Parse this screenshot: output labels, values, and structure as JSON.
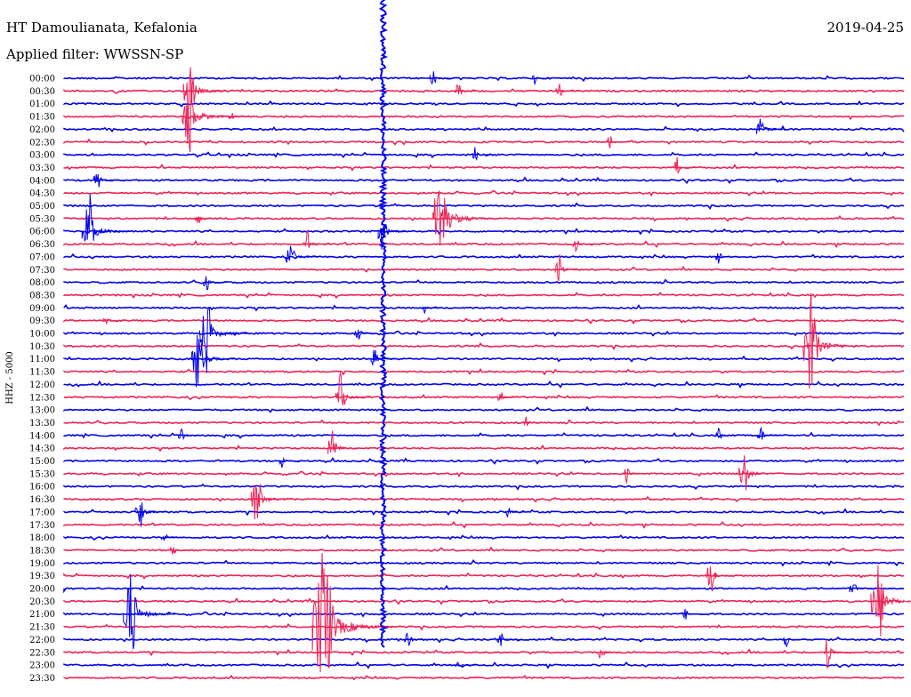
{
  "header": {
    "station": "HT Damoulianata, Kefalonia",
    "date": "2019-04-25",
    "filter_text": "Applied filter: WWSSN-SP"
  },
  "chart_data": {
    "type": "line",
    "title": "HT Damoulianata, Kefalonia",
    "subtitle": "Applied filter: WWSSN-SP",
    "date": "2019-04-25",
    "ylabel": "HHZ - 5000",
    "xlabel": "",
    "grid": false,
    "legend": "none",
    "colors": [
      "#0000ee",
      "#ee2255"
    ],
    "row_interval_minutes": 30,
    "rows": [
      "00:00",
      "00:30",
      "01:00",
      "01:30",
      "02:00",
      "02:30",
      "03:00",
      "03:30",
      "04:00",
      "04:30",
      "05:00",
      "05:30",
      "06:00",
      "06:30",
      "07:00",
      "07:30",
      "08:00",
      "08:30",
      "09:00",
      "09:30",
      "10:00",
      "10:30",
      "11:00",
      "11:30",
      "12:00",
      "12:30",
      "13:00",
      "13:30",
      "14:00",
      "14:30",
      "15:00",
      "15:30",
      "16:00",
      "16:30",
      "17:00",
      "17:30",
      "18:00",
      "18:30",
      "19:00",
      "19:30",
      "20:00",
      "20:30",
      "21:00",
      "21:30",
      "22:00",
      "22:30",
      "23:00",
      "23:30"
    ],
    "events": [
      {
        "row": 0,
        "pos": 0.44,
        "amp": 10
      },
      {
        "row": 0,
        "pos": 0.56,
        "amp": 7
      },
      {
        "row": 1,
        "pos": 0.15,
        "amp": 35
      },
      {
        "row": 1,
        "pos": 0.47,
        "amp": 10
      },
      {
        "row": 1,
        "pos": 0.59,
        "amp": 9
      },
      {
        "row": 3,
        "pos": 0.15,
        "amp": 45
      },
      {
        "row": 3,
        "pos": 0.2,
        "amp": 6
      },
      {
        "row": 4,
        "pos": 0.83,
        "amp": 18
      },
      {
        "row": 5,
        "pos": 0.65,
        "amp": 9
      },
      {
        "row": 6,
        "pos": 0.49,
        "amp": 8
      },
      {
        "row": 7,
        "pos": 0.73,
        "amp": 10
      },
      {
        "row": 8,
        "pos": 0.04,
        "amp": 14
      },
      {
        "row": 11,
        "pos": 0.45,
        "amp": 55
      },
      {
        "row": 11,
        "pos": 0.16,
        "amp": 8
      },
      {
        "row": 12,
        "pos": 0.03,
        "amp": 40
      },
      {
        "row": 12,
        "pos": 0.38,
        "amp": 22
      },
      {
        "row": 13,
        "pos": 0.29,
        "amp": 14
      },
      {
        "row": 13,
        "pos": 0.61,
        "amp": 8
      },
      {
        "row": 14,
        "pos": 0.27,
        "amp": 20
      },
      {
        "row": 14,
        "pos": 0.78,
        "amp": 7
      },
      {
        "row": 15,
        "pos": 0.59,
        "amp": 16
      },
      {
        "row": 16,
        "pos": 0.17,
        "amp": 9
      },
      {
        "row": 18,
        "pos": 0.43,
        "amp": 6
      },
      {
        "row": 19,
        "pos": 0.05,
        "amp": 6
      },
      {
        "row": 20,
        "pos": 0.17,
        "amp": 40
      },
      {
        "row": 20,
        "pos": 0.35,
        "amp": 8
      },
      {
        "row": 21,
        "pos": 0.89,
        "amp": 50
      },
      {
        "row": 22,
        "pos": 0.16,
        "amp": 35
      },
      {
        "row": 22,
        "pos": 0.37,
        "amp": 12
      },
      {
        "row": 25,
        "pos": 0.33,
        "amp": 25
      },
      {
        "row": 25,
        "pos": 0.52,
        "amp": 8
      },
      {
        "row": 27,
        "pos": 0.55,
        "amp": 8
      },
      {
        "row": 28,
        "pos": 0.14,
        "amp": 9
      },
      {
        "row": 28,
        "pos": 0.78,
        "amp": 8
      },
      {
        "row": 28,
        "pos": 0.83,
        "amp": 9
      },
      {
        "row": 29,
        "pos": 0.32,
        "amp": 20
      },
      {
        "row": 30,
        "pos": 0.26,
        "amp": 7
      },
      {
        "row": 31,
        "pos": 0.67,
        "amp": 9
      },
      {
        "row": 31,
        "pos": 0.81,
        "amp": 25
      },
      {
        "row": 33,
        "pos": 0.23,
        "amp": 30
      },
      {
        "row": 34,
        "pos": 0.09,
        "amp": 20
      },
      {
        "row": 34,
        "pos": 0.53,
        "amp": 8
      },
      {
        "row": 36,
        "pos": 0.12,
        "amp": 8
      },
      {
        "row": 37,
        "pos": 0.13,
        "amp": 8
      },
      {
        "row": 39,
        "pos": 0.77,
        "amp": 20
      },
      {
        "row": 40,
        "pos": 0.94,
        "amp": 12
      },
      {
        "row": 41,
        "pos": 0.97,
        "amp": 45
      },
      {
        "row": 42,
        "pos": 0.08,
        "amp": 45
      },
      {
        "row": 42,
        "pos": 0.74,
        "amp": 6
      },
      {
        "row": 43,
        "pos": 0.31,
        "amp": 80
      },
      {
        "row": 44,
        "pos": 0.41,
        "amp": 12
      },
      {
        "row": 44,
        "pos": 0.52,
        "amp": 8
      },
      {
        "row": 44,
        "pos": 0.86,
        "amp": 8
      },
      {
        "row": 45,
        "pos": 0.64,
        "amp": 10
      },
      {
        "row": 45,
        "pos": 0.91,
        "amp": 18
      },
      {
        "row": 46,
        "pos": 0.47,
        "amp": 6
      }
    ],
    "glitch": {
      "start_row": 0,
      "end_row": 44,
      "pos": 0.38
    }
  }
}
